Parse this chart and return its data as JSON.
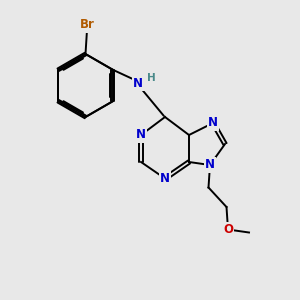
{
  "bg_color": "#e8e8e8",
  "bond_color": "#000000",
  "n_color": "#0000cc",
  "o_color": "#cc0000",
  "br_color": "#b05a00",
  "h_color": "#4a8a8a",
  "font_size_atom": 8.5,
  "line_width": 1.4,
  "dbo": 0.06,
  "xlim": [
    0,
    10
  ],
  "ylim": [
    0,
    10
  ]
}
